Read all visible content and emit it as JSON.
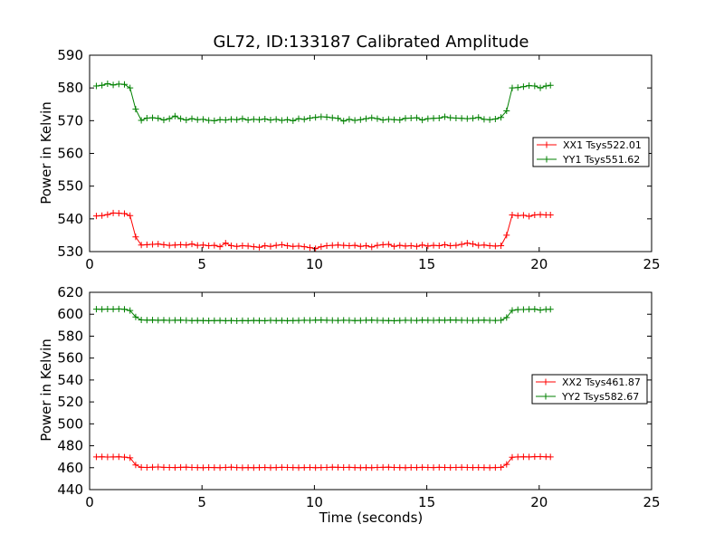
{
  "chart_data": [
    {
      "type": "line",
      "title": "GL72, ID:133187 Calibrated Amplitude",
      "xlabel": "",
      "ylabel": "Power in Kelvin",
      "xlim": [
        0,
        25
      ],
      "ylim": [
        530,
        590
      ],
      "xticks": [
        0,
        5,
        10,
        15,
        20,
        25
      ],
      "yticks": [
        530,
        540,
        550,
        560,
        570,
        580,
        590
      ],
      "grid": false,
      "legend_position": "right",
      "x": [
        0.3,
        0.55,
        0.8,
        1.05,
        1.3,
        1.55,
        1.8,
        2.05,
        2.3,
        2.55,
        2.8,
        3.05,
        3.3,
        3.55,
        3.8,
        4.05,
        4.3,
        4.55,
        4.8,
        5.05,
        5.3,
        5.55,
        5.8,
        6.05,
        6.3,
        6.55,
        6.8,
        7.05,
        7.3,
        7.55,
        7.8,
        8.05,
        8.3,
        8.55,
        8.8,
        9.05,
        9.3,
        9.55,
        9.8,
        10.05,
        10.3,
        10.55,
        10.8,
        11.05,
        11.3,
        11.55,
        11.8,
        12.05,
        12.3,
        12.55,
        12.8,
        13.05,
        13.3,
        13.55,
        13.8,
        14.05,
        14.3,
        14.55,
        14.8,
        15.05,
        15.3,
        15.55,
        15.8,
        16.05,
        16.3,
        16.55,
        16.8,
        17.05,
        17.3,
        17.55,
        17.8,
        18.05,
        18.3,
        18.55,
        18.8,
        19.05,
        19.3,
        19.55,
        19.8,
        20.05,
        20.3,
        20.5
      ],
      "series": [
        {
          "name": "XX1 Tsys522.01",
          "color": "#ff0000",
          "values": [
            540.9,
            541.0,
            541.3,
            541.8,
            541.7,
            541.6,
            541.0,
            534.5,
            532.0,
            532.1,
            532.2,
            532.3,
            532.1,
            531.9,
            532.0,
            532.1,
            532.0,
            532.3,
            531.9,
            532.0,
            531.8,
            531.9,
            531.5,
            532.6,
            531.8,
            531.6,
            531.8,
            531.7,
            531.5,
            531.3,
            531.8,
            531.6,
            531.9,
            532.1,
            531.8,
            531.6,
            531.7,
            531.5,
            531.2,
            530.9,
            531.5,
            531.8,
            531.9,
            532.0,
            531.9,
            531.8,
            531.9,
            531.6,
            531.8,
            531.4,
            531.9,
            532.1,
            532.2,
            531.6,
            531.9,
            531.7,
            531.8,
            531.6,
            532.0,
            531.7,
            531.9,
            531.8,
            532.1,
            531.8,
            531.9,
            532.2,
            532.6,
            532.3,
            531.9,
            532.0,
            531.8,
            531.7,
            531.8,
            535.0,
            541.2,
            541.0,
            541.1,
            540.8,
            541.2,
            541.3,
            541.2,
            541.2
          ]
        },
        {
          "name": "YY1 Tsys551.62",
          "color": "#008000",
          "values": [
            580.6,
            580.8,
            581.3,
            580.9,
            581.2,
            581.1,
            580.0,
            573.5,
            570.1,
            570.8,
            570.9,
            570.7,
            570.2,
            570.6,
            571.4,
            570.6,
            570.2,
            570.6,
            570.3,
            570.4,
            570.1,
            570.0,
            570.3,
            570.2,
            570.4,
            570.3,
            570.6,
            570.2,
            570.4,
            570.3,
            570.5,
            570.2,
            570.4,
            570.1,
            570.3,
            570.0,
            570.6,
            570.4,
            570.8,
            571.0,
            571.2,
            571.1,
            570.9,
            570.7,
            569.9,
            570.4,
            570.1,
            570.3,
            570.6,
            570.9,
            570.6,
            570.2,
            570.4,
            570.3,
            570.2,
            570.7,
            570.8,
            570.9,
            570.2,
            570.6,
            570.7,
            570.8,
            571.2,
            570.9,
            570.8,
            570.7,
            570.6,
            570.7,
            571.0,
            570.4,
            570.3,
            570.5,
            571.0,
            573.0,
            580.0,
            580.1,
            580.4,
            580.7,
            580.6,
            580.0,
            580.6,
            580.8
          ]
        }
      ]
    },
    {
      "type": "line",
      "title": "",
      "xlabel": "Time (seconds)",
      "ylabel": "Power in Kelvin",
      "xlim": [
        0,
        25
      ],
      "ylim": [
        440,
        620
      ],
      "xticks": [
        0,
        5,
        10,
        15,
        20,
        25
      ],
      "yticks": [
        440,
        460,
        480,
        500,
        520,
        540,
        560,
        580,
        600,
        620
      ],
      "grid": false,
      "legend_position": "right",
      "x": [
        0.3,
        0.55,
        0.8,
        1.05,
        1.3,
        1.55,
        1.8,
        2.05,
        2.3,
        2.55,
        2.8,
        3.05,
        3.3,
        3.55,
        3.8,
        4.05,
        4.3,
        4.55,
        4.8,
        5.05,
        5.3,
        5.55,
        5.8,
        6.05,
        6.3,
        6.55,
        6.8,
        7.05,
        7.3,
        7.55,
        7.8,
        8.05,
        8.3,
        8.55,
        8.8,
        9.05,
        9.3,
        9.55,
        9.8,
        10.05,
        10.3,
        10.55,
        10.8,
        11.05,
        11.3,
        11.55,
        11.8,
        12.05,
        12.3,
        12.55,
        12.8,
        13.05,
        13.3,
        13.55,
        13.8,
        14.05,
        14.3,
        14.55,
        14.8,
        15.05,
        15.3,
        15.55,
        15.8,
        16.05,
        16.3,
        16.55,
        16.8,
        17.05,
        17.3,
        17.55,
        17.8,
        18.05,
        18.3,
        18.55,
        18.8,
        19.05,
        19.3,
        19.55,
        19.8,
        20.05,
        20.3,
        20.5
      ],
      "series": [
        {
          "name": "XX2 Tsys461.87",
          "color": "#ff0000",
          "values": [
            469.8,
            469.9,
            469.7,
            469.8,
            469.9,
            469.6,
            469.0,
            462.5,
            460.3,
            460.2,
            460.4,
            460.6,
            460.3,
            460.2,
            460.1,
            460.3,
            460.4,
            460.2,
            460.1,
            460.0,
            460.2,
            460.1,
            460.0,
            460.2,
            460.4,
            460.1,
            460.0,
            460.1,
            460.0,
            460.1,
            460.2,
            460.0,
            460.1,
            460.3,
            460.2,
            460.1,
            460.0,
            460.1,
            460.2,
            460.0,
            460.1,
            460.2,
            460.4,
            460.3,
            460.2,
            460.3,
            460.1,
            460.0,
            460.1,
            460.0,
            460.2,
            460.3,
            460.4,
            460.2,
            460.1,
            460.0,
            460.2,
            460.1,
            460.3,
            460.2,
            460.1,
            460.3,
            460.2,
            460.1,
            460.2,
            460.3,
            460.2,
            460.1,
            460.2,
            460.1,
            460.0,
            460.1,
            460.3,
            463.0,
            469.5,
            469.8,
            469.9,
            469.8,
            470.0,
            470.1,
            469.9,
            469.8
          ]
        },
        {
          "name": "YY2 Tsys582.67",
          "color": "#008000",
          "values": [
            604.6,
            604.5,
            604.7,
            604.6,
            604.8,
            604.5,
            603.4,
            597.5,
            594.8,
            594.6,
            594.7,
            594.5,
            594.6,
            594.4,
            594.5,
            594.6,
            594.4,
            594.2,
            594.3,
            594.2,
            594.1,
            594.2,
            594.3,
            594.1,
            594.2,
            594.0,
            594.2,
            594.1,
            594.3,
            594.2,
            594.1,
            594.4,
            594.2,
            594.3,
            594.1,
            594.2,
            594.3,
            594.5,
            594.4,
            594.6,
            594.7,
            594.5,
            594.4,
            594.3,
            594.5,
            594.4,
            594.2,
            594.3,
            594.5,
            594.6,
            594.4,
            594.3,
            594.2,
            594.1,
            594.3,
            594.5,
            594.4,
            594.3,
            594.6,
            594.5,
            594.4,
            594.6,
            594.5,
            594.7,
            594.6,
            594.5,
            594.4,
            594.3,
            594.5,
            594.6,
            594.4,
            594.3,
            594.5,
            597.0,
            603.5,
            604.2,
            604.3,
            604.5,
            604.6,
            603.8,
            604.4,
            604.5
          ]
        }
      ]
    }
  ]
}
